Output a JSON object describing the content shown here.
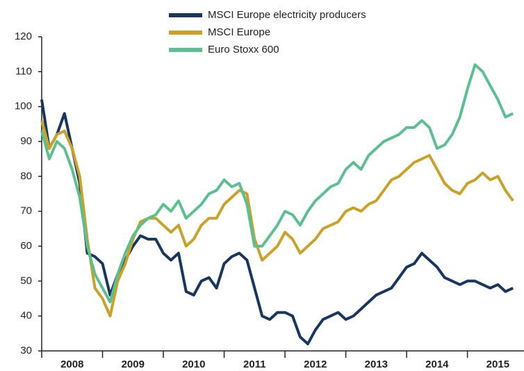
{
  "chart_data": {
    "type": "line",
    "x": [
      2008,
      2008.125,
      2008.25,
      2008.375,
      2008.5,
      2008.625,
      2008.75,
      2008.875,
      2009,
      2009.125,
      2009.25,
      2009.375,
      2009.5,
      2009.625,
      2009.75,
      2009.875,
      2010,
      2010.125,
      2010.25,
      2010.375,
      2010.5,
      2010.625,
      2010.75,
      2010.875,
      2011,
      2011.125,
      2011.25,
      2011.375,
      2011.5,
      2011.625,
      2011.75,
      2011.875,
      2012,
      2012.125,
      2012.25,
      2012.375,
      2012.5,
      2012.625,
      2012.75,
      2012.875,
      2013,
      2013.125,
      2013.25,
      2013.375,
      2013.5,
      2013.625,
      2013.75,
      2013.875,
      2014,
      2014.125,
      2014.25,
      2014.375,
      2014.5,
      2014.625,
      2014.75,
      2014.875,
      2015,
      2015.125,
      2015.25,
      2015.375,
      2015.5,
      2015.625,
      2015.75
    ],
    "series": [
      {
        "name": "MSCI Europe electricity producers",
        "color": "#173761",
        "values": [
          102,
          88,
          92,
          98,
          88,
          78,
          58,
          57,
          55,
          46,
          52,
          56,
          60,
          63,
          62,
          62,
          58,
          56,
          58,
          47,
          46,
          50,
          51,
          48,
          55,
          57,
          58,
          56,
          48,
          40,
          39,
          41,
          41,
          40,
          34,
          32,
          36,
          39,
          40,
          41,
          39,
          40,
          42,
          44,
          46,
          47,
          48,
          51,
          54,
          55,
          58,
          56,
          54,
          51,
          50,
          49,
          50,
          50,
          49,
          48,
          49,
          47,
          48
        ]
      },
      {
        "name": "MSCI Europe",
        "color": "#c9a227",
        "values": [
          96,
          88,
          92,
          93,
          88,
          80,
          62,
          48,
          45,
          40,
          50,
          55,
          62,
          67,
          68,
          68,
          66,
          64,
          66,
          60,
          62,
          66,
          68,
          68,
          72,
          74,
          76,
          75,
          62,
          56,
          58,
          60,
          64,
          62,
          58,
          60,
          62,
          65,
          66,
          67,
          70,
          71,
          70,
          72,
          73,
          76,
          79,
          80,
          82,
          84,
          85,
          86,
          82,
          78,
          76,
          75,
          78,
          79,
          81,
          79,
          80,
          76,
          73
        ]
      },
      {
        "name": "Euro Stoxx 600",
        "color": "#5cbf8f",
        "values": [
          93,
          85,
          90,
          88,
          82,
          74,
          60,
          52,
          48,
          44,
          52,
          58,
          63,
          66,
          68,
          69,
          72,
          70,
          73,
          68,
          70,
          72,
          75,
          76,
          79,
          77,
          78,
          72,
          60,
          60,
          63,
          66,
          70,
          69,
          66,
          70,
          73,
          75,
          77,
          78,
          82,
          84,
          82,
          86,
          88,
          90,
          91,
          92,
          94,
          94,
          96,
          94,
          88,
          89,
          92,
          97,
          105,
          112,
          110,
          106,
          102,
          97,
          98
        ]
      }
    ],
    "xlim": [
      2008,
      2015.93
    ],
    "xticks": [
      2008,
      2009,
      2010,
      2011,
      2012,
      2013,
      2014,
      2015
    ],
    "ylim": [
      30,
      120
    ],
    "yticks": [
      30,
      40,
      50,
      60,
      70,
      80,
      90,
      100,
      110,
      120
    ],
    "legend": "top"
  }
}
